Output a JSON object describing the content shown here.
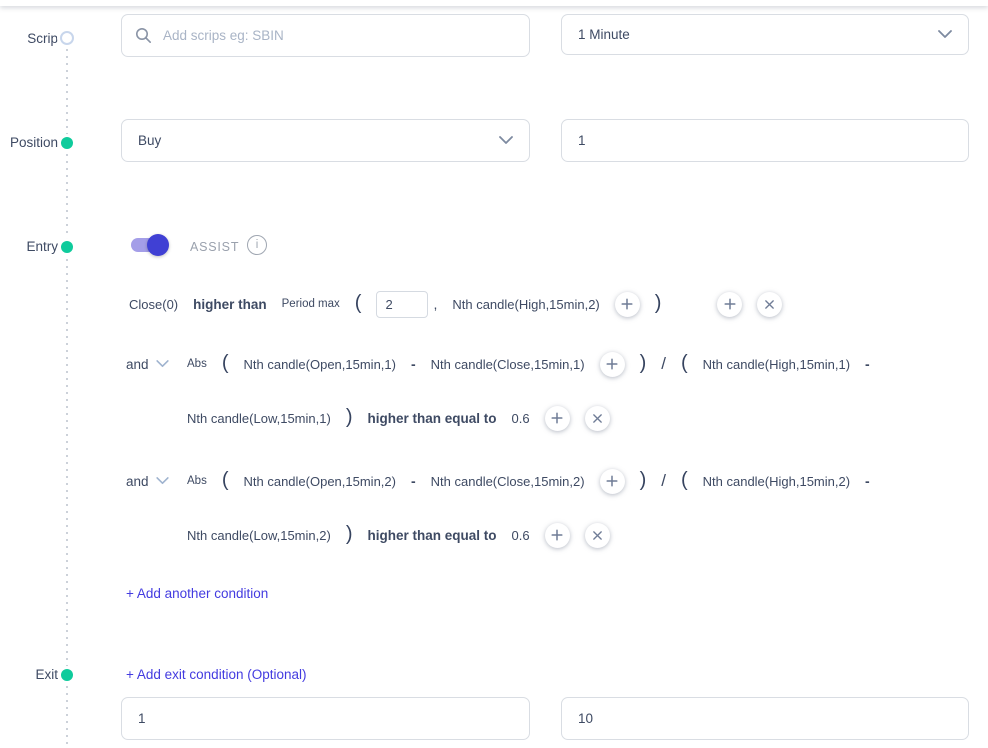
{
  "stepper": {
    "items": [
      {
        "label": "Scrip",
        "state": "pending"
      },
      {
        "label": "Position",
        "state": "done"
      },
      {
        "label": "Entry",
        "state": "done"
      },
      {
        "label": "Exit",
        "state": "done"
      }
    ]
  },
  "scrip": {
    "search_placeholder": "Add scrips eg: SBIN",
    "timeframe": "1 Minute"
  },
  "position": {
    "type": "Buy",
    "quantity": "1"
  },
  "entry": {
    "assist": {
      "label": "ASSIST",
      "enabled": true,
      "info_glyph": "i"
    },
    "conditions": [
      {
        "connector": null,
        "lines": [
          [
            {
              "t": "text",
              "v": "Close(0)"
            },
            {
              "t": "bold",
              "v": "higher than"
            },
            {
              "t": "small",
              "v": "Period max"
            },
            {
              "t": "paren",
              "v": "("
            },
            {
              "t": "input",
              "v": "2"
            },
            {
              "t": "comma",
              "v": ","
            },
            {
              "t": "text",
              "v": "Nth candle(High,15min,2)"
            },
            {
              "t": "plus"
            },
            {
              "t": "paren",
              "v": ")"
            },
            {
              "t": "gap",
              "w": 26
            },
            {
              "t": "plus"
            },
            {
              "t": "close"
            }
          ]
        ]
      },
      {
        "connector": "and",
        "lines": [
          [
            {
              "t": "small",
              "v": "Abs"
            },
            {
              "t": "paren",
              "v": "("
            },
            {
              "t": "text",
              "v": "Nth candle(Open,15min,1)"
            },
            {
              "t": "op",
              "v": "-"
            },
            {
              "t": "text",
              "v": "Nth candle(Close,15min,1)"
            },
            {
              "t": "plus"
            },
            {
              "t": "paren",
              "v": ")"
            },
            {
              "t": "slash",
              "v": "/"
            },
            {
              "t": "paren",
              "v": "("
            },
            {
              "t": "text",
              "v": "Nth candle(High,15min,1)"
            },
            {
              "t": "op",
              "v": "-"
            }
          ],
          [
            {
              "t": "text",
              "v": "Nth candle(Low,15min,1)"
            },
            {
              "t": "paren",
              "v": ")"
            },
            {
              "t": "bold",
              "v": "higher than equal to"
            },
            {
              "t": "num",
              "v": "0.6"
            },
            {
              "t": "plus"
            },
            {
              "t": "close"
            }
          ]
        ]
      },
      {
        "connector": "and",
        "lines": [
          [
            {
              "t": "small",
              "v": "Abs"
            },
            {
              "t": "paren",
              "v": "("
            },
            {
              "t": "text",
              "v": "Nth candle(Open,15min,2)"
            },
            {
              "t": "op",
              "v": "-"
            },
            {
              "t": "text",
              "v": "Nth candle(Close,15min,2)"
            },
            {
              "t": "plus"
            },
            {
              "t": "paren",
              "v": ")"
            },
            {
              "t": "slash",
              "v": "/"
            },
            {
              "t": "paren",
              "v": "("
            },
            {
              "t": "text",
              "v": "Nth candle(High,15min,2)"
            },
            {
              "t": "op",
              "v": "-"
            }
          ],
          [
            {
              "t": "text",
              "v": "Nth candle(Low,15min,2)"
            },
            {
              "t": "paren",
              "v": ")"
            },
            {
              "t": "bold",
              "v": "higher than equal to"
            },
            {
              "t": "num",
              "v": "0.6"
            },
            {
              "t": "plus"
            },
            {
              "t": "close"
            }
          ]
        ]
      }
    ],
    "add_condition_label": "+ Add another condition"
  },
  "exit": {
    "add_exit_label": "+ Add exit condition (Optional)",
    "field_left_value": "1",
    "field_right_value": "10"
  },
  "colors": {
    "accent_green": "#0fcb9c",
    "toggle_blue": "#4040d4",
    "link_blue": "#433be0",
    "text": "#3e4a63"
  }
}
